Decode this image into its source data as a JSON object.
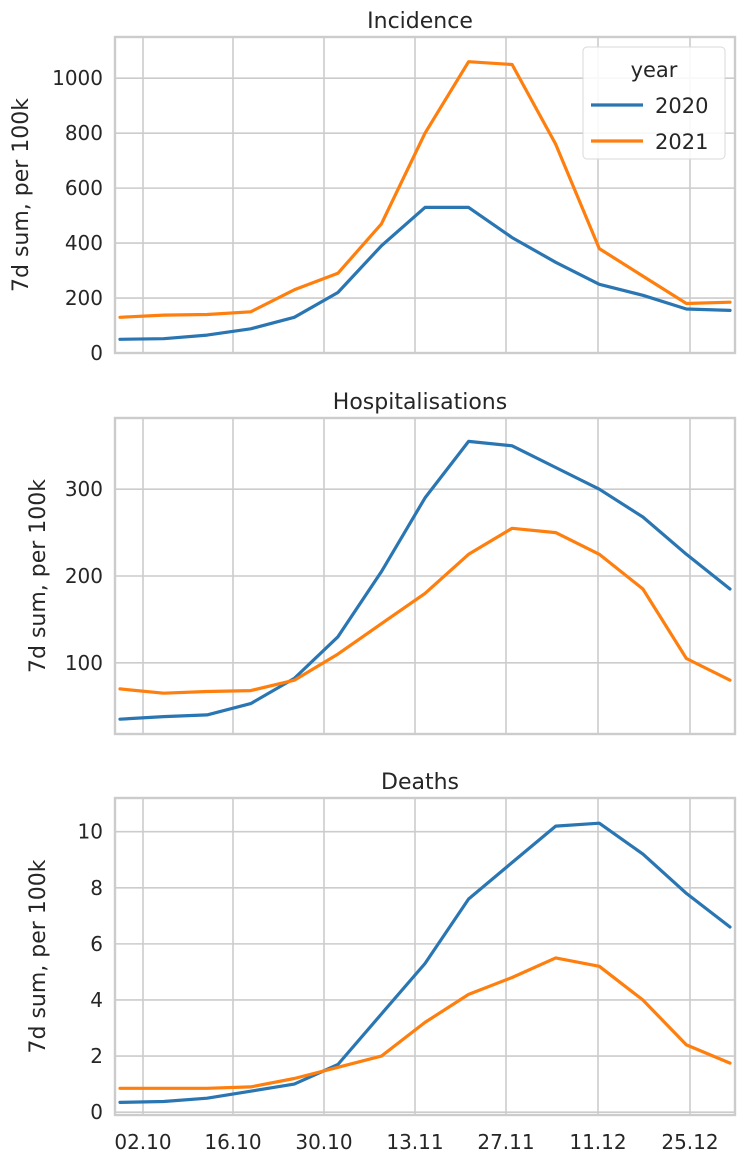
{
  "colors": {
    "2020": "#2a76b3",
    "2021": "#ff7f0e",
    "grid": "#cccccc",
    "spine": "#cccccc",
    "text": "#262626"
  },
  "legend": {
    "title": "year",
    "placement": "upper-right of first panel",
    "entries": [
      "2020",
      "2021"
    ]
  },
  "x_ticks": [
    "02.10",
    "16.10",
    "30.10",
    "13.11",
    "27.11",
    "11.12",
    "25.12"
  ],
  "chart_data": [
    {
      "type": "line",
      "title": "Incidence",
      "xlabel": "",
      "ylabel": "7d sum, per 100k",
      "ylim": [
        0,
        1150
      ],
      "yticks": [
        0,
        200,
        400,
        600,
        800,
        1000
      ],
      "grid": true,
      "x": [
        "28.09",
        "02.10",
        "09.10",
        "16.10",
        "23.10",
        "30.10",
        "06.11",
        "13.11",
        "20.11",
        "27.11",
        "04.12",
        "11.12",
        "18.12",
        "25.12",
        "31.12"
      ],
      "series": [
        {
          "name": "2020",
          "values": [
            50,
            52,
            65,
            88,
            130,
            220,
            390,
            530,
            530,
            420,
            330,
            250,
            210,
            160,
            155
          ]
        },
        {
          "name": "2021",
          "values": [
            130,
            138,
            140,
            150,
            230,
            290,
            470,
            800,
            1060,
            1050,
            760,
            380,
            280,
            180,
            185
          ]
        }
      ]
    },
    {
      "type": "line",
      "title": "Hospitalisations",
      "xlabel": "",
      "ylabel": "7d sum, per 100k",
      "ylim": [
        18,
        382
      ],
      "yticks": [
        100,
        200,
        300
      ],
      "grid": true,
      "x": [
        "28.09",
        "02.10",
        "09.10",
        "16.10",
        "23.10",
        "30.10",
        "06.11",
        "13.11",
        "20.11",
        "27.11",
        "04.12",
        "11.12",
        "18.12",
        "25.12",
        "31.12"
      ],
      "series": [
        {
          "name": "2020",
          "values": [
            35,
            38,
            40,
            53,
            82,
            130,
            205,
            290,
            355,
            350,
            325,
            300,
            268,
            225,
            185
          ]
        },
        {
          "name": "2021",
          "values": [
            70,
            65,
            67,
            68,
            80,
            110,
            145,
            180,
            225,
            255,
            250,
            225,
            185,
            105,
            80
          ]
        }
      ]
    },
    {
      "type": "line",
      "title": "Deaths",
      "xlabel": "",
      "ylabel": "7d sum, per 100k",
      "ylim": [
        -0.1,
        11.2
      ],
      "yticks": [
        0,
        2,
        4,
        6,
        8,
        10
      ],
      "grid": true,
      "x": [
        "28.09",
        "02.10",
        "09.10",
        "16.10",
        "23.10",
        "30.10",
        "06.11",
        "13.11",
        "20.11",
        "27.11",
        "04.12",
        "11.12",
        "18.12",
        "25.12",
        "31.12"
      ],
      "series": [
        {
          "name": "2020",
          "values": [
            0.35,
            0.38,
            0.5,
            0.75,
            1.0,
            1.7,
            3.5,
            5.3,
            7.6,
            8.9,
            10.2,
            10.3,
            9.2,
            7.8,
            6.6
          ]
        },
        {
          "name": "2021",
          "values": [
            0.85,
            0.85,
            0.85,
            0.9,
            1.2,
            1.6,
            2.0,
            3.2,
            4.2,
            4.8,
            5.5,
            5.2,
            4.0,
            2.4,
            1.75
          ]
        }
      ]
    }
  ]
}
